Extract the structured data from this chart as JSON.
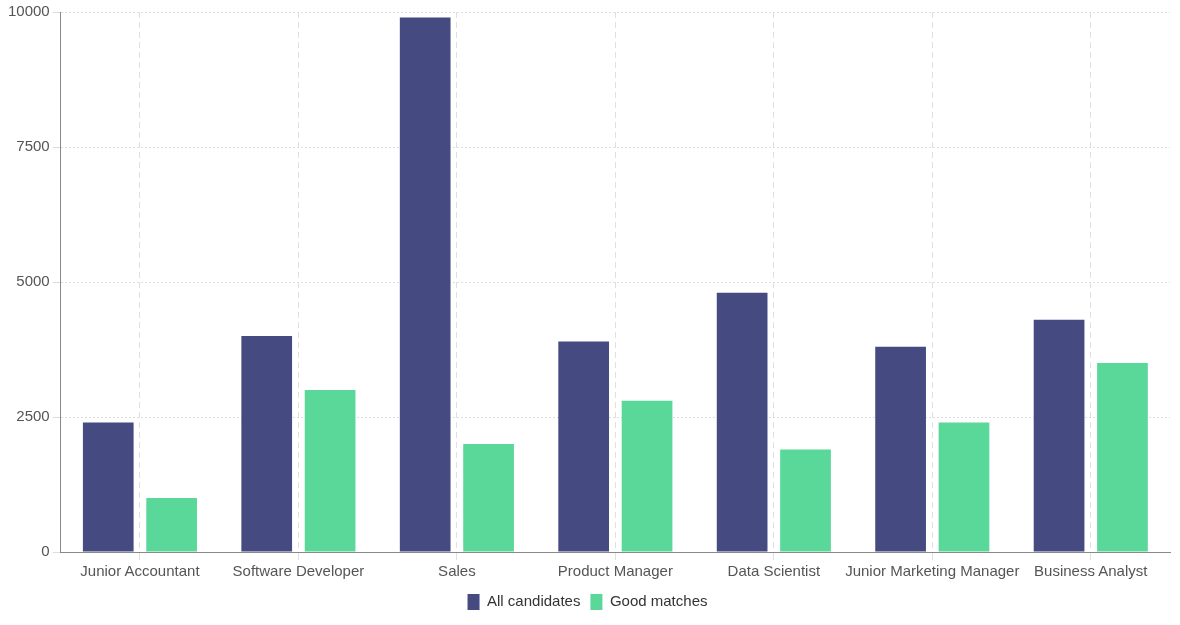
{
  "chart_data": {
    "type": "bar",
    "categories": [
      "Junior Accountant",
      "Software Developer",
      "Sales",
      "Product Manager",
      "Data Scientist",
      "Junior Marketing Manager",
      "Business Analyst"
    ],
    "series": [
      {
        "name": "All candidates",
        "color": "#454a80",
        "values": [
          2400,
          4000,
          9900,
          3900,
          4800,
          3800,
          4300
        ]
      },
      {
        "name": "Good matches",
        "color": "#5ad89a",
        "values": [
          1000,
          3000,
          2000,
          2800,
          1900,
          2400,
          3500
        ]
      }
    ],
    "ylim": [
      0,
      10000
    ],
    "yticks": [
      0,
      2500,
      5000,
      7500,
      10000
    ],
    "grid": true,
    "legend": "bottom"
  }
}
